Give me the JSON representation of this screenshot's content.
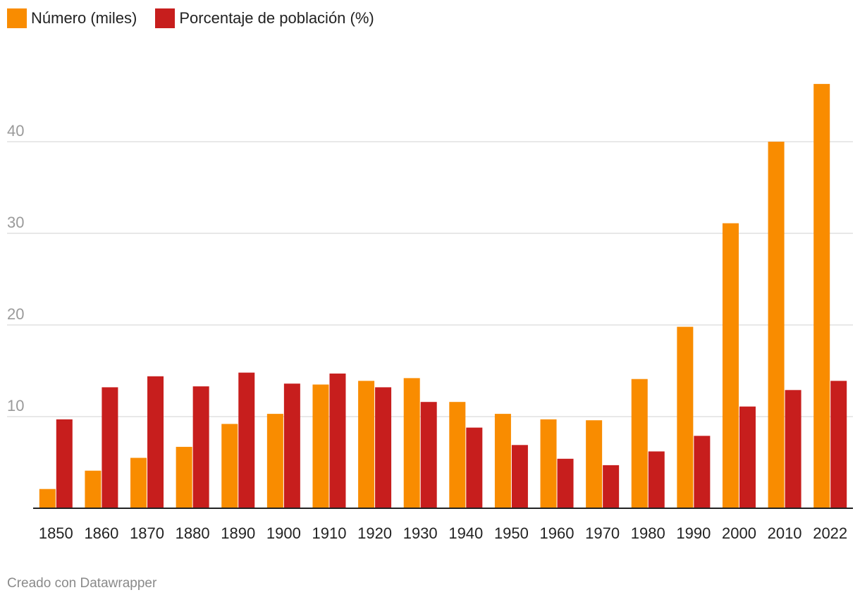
{
  "colors": {
    "series1": "#f98c00",
    "series2": "#c71e1d",
    "grid": "#e0e0e0",
    "baseline": "#222222",
    "ytick": "#9a9a9a",
    "xtick": "#222222"
  },
  "legend": [
    {
      "label": "Número (miles)"
    },
    {
      "label": "Porcentaje de población (%)"
    }
  ],
  "footer": "Creado con Datawrapper",
  "chart_data": {
    "type": "bar",
    "title": "",
    "xlabel": "",
    "ylabel": "",
    "ylim": [
      0,
      46
    ],
    "yticks": [
      10,
      20,
      30,
      40
    ],
    "grid": true,
    "legend_position": "top-left",
    "categories": [
      "1850",
      "1860",
      "1870",
      "1880",
      "1890",
      "1900",
      "1910",
      "1920",
      "1930",
      "1940",
      "1950",
      "1960",
      "1970",
      "1980",
      "1990",
      "2000",
      "2010",
      "2022"
    ],
    "series": [
      {
        "name": "Número (miles)",
        "values": [
          2.1,
          4.1,
          5.5,
          6.7,
          9.2,
          10.3,
          13.5,
          13.9,
          14.2,
          11.6,
          10.3,
          9.7,
          9.6,
          14.1,
          19.8,
          31.1,
          40.0,
          46.3
        ]
      },
      {
        "name": "Porcentaje de población (%)",
        "values": [
          9.7,
          13.2,
          14.4,
          13.3,
          14.8,
          13.6,
          14.7,
          13.2,
          11.6,
          8.8,
          6.9,
          5.4,
          4.7,
          6.2,
          7.9,
          11.1,
          12.9,
          13.9
        ]
      }
    ]
  }
}
